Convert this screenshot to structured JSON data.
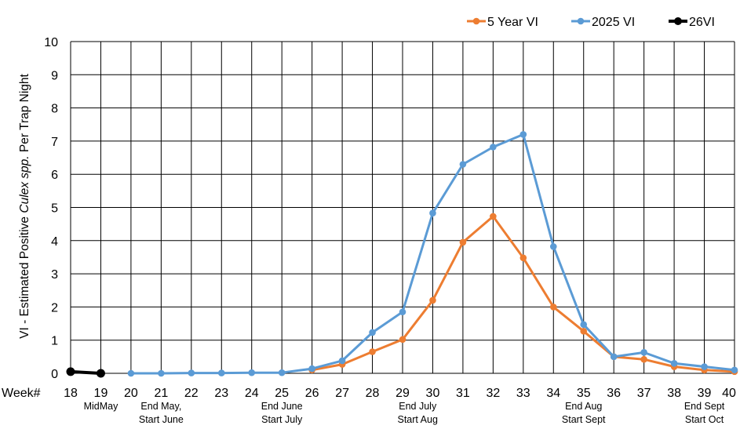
{
  "chart_data": {
    "type": "line",
    "title": "",
    "xlabel": "",
    "ylabel_prefix": "VI - Estimated Positive ",
    "ylabel_italic": "Culex spp.",
    "ylabel_suffix": " Per Trap Night",
    "week_prefix": "Week#",
    "ylim": [
      0,
      10
    ],
    "yticks": [
      "0",
      "1",
      "2",
      "3",
      "4",
      "5",
      "6",
      "7",
      "8",
      "9",
      "10"
    ],
    "xticks": [
      "18",
      "19",
      "20",
      "21",
      "22",
      "23",
      "24",
      "25",
      "26",
      "27",
      "28",
      "29",
      "30",
      "31",
      "32",
      "33",
      "34",
      "35",
      "36",
      "37",
      "38",
      "39",
      "40"
    ],
    "x_values": [
      18,
      19,
      20,
      21,
      22,
      23,
      24,
      25,
      26,
      27,
      28,
      29,
      30,
      31,
      32,
      33,
      34,
      35,
      36,
      37,
      38,
      39,
      40
    ],
    "grid": true,
    "legend_position": "top-right",
    "month_annotations": [
      {
        "week": 19,
        "lines": [
          "MidMay"
        ]
      },
      {
        "week": 21,
        "lines": [
          "End May,",
          "Start June"
        ]
      },
      {
        "week": 25,
        "lines": [
          "End June",
          "Start July"
        ]
      },
      {
        "week": 29.5,
        "lines": [
          "End July",
          "Start Aug"
        ]
      },
      {
        "week": 35,
        "lines": [
          "End Aug",
          "Start Sept"
        ]
      },
      {
        "week": 39,
        "lines": [
          "End Sept",
          "Start Oct"
        ]
      }
    ],
    "series": [
      {
        "name": "5 Year VI",
        "color": "#ed7d31",
        "x": [
          26,
          27,
          28,
          29,
          30,
          31,
          32,
          33,
          34,
          35,
          36,
          37,
          38,
          39,
          40
        ],
        "values": [
          0.1,
          0.27,
          0.65,
          1.02,
          2.2,
          3.95,
          4.73,
          3.48,
          2.0,
          1.27,
          0.5,
          0.42,
          0.2,
          0.1,
          0.05
        ]
      },
      {
        "name": "2025 VI",
        "color": "#5b9bd5",
        "x": [
          20,
          21,
          22,
          23,
          24,
          25,
          26,
          27,
          28,
          29,
          30,
          31,
          32,
          33,
          34,
          35,
          36,
          37,
          38,
          39,
          40
        ],
        "values": [
          0.0,
          0.0,
          0.01,
          0.01,
          0.02,
          0.02,
          0.14,
          0.38,
          1.23,
          1.85,
          4.83,
          6.3,
          6.82,
          7.2,
          3.82,
          1.47,
          0.5,
          0.63,
          0.3,
          0.2,
          0.1
        ]
      },
      {
        "name": "26VI",
        "color": "#000000",
        "x": [
          18,
          19
        ],
        "values": [
          0.05,
          0.0
        ]
      }
    ]
  }
}
